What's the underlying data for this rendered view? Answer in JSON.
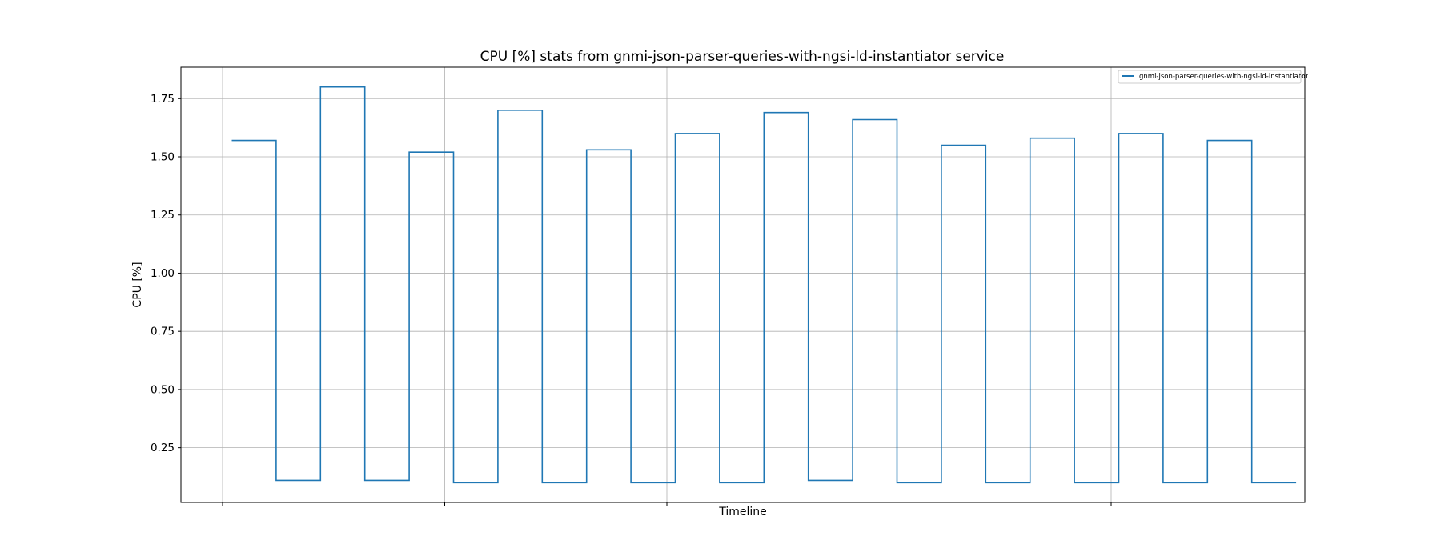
{
  "chart_data": {
    "type": "line",
    "title": "CPU [%] stats from gnmi-json-parser-queries-with-ngsi-ld-instantiator service",
    "xlabel": "Timeline",
    "ylabel": "CPU [%]",
    "x_tick_labels_visible": false,
    "line_style": "steps-post",
    "grid": true,
    "legend_position": "top-right",
    "ylim": [
      0.015,
      1.885
    ],
    "yticks": [
      0.25,
      0.5,
      0.75,
      1.0,
      1.25,
      1.5,
      1.75
    ],
    "ytick_labels": [
      "0.25",
      "0.50",
      "0.75",
      "1.00",
      "1.25",
      "1.50",
      "1.75"
    ],
    "series": [
      {
        "name": "gnmi-json-parser-queries-with-ngsi-ld-instantiator",
        "color": "#1f77b4",
        "x": [
          0,
          1,
          2,
          3,
          4,
          5,
          6,
          7,
          8,
          9,
          10,
          11,
          12,
          13,
          14,
          15,
          16,
          17,
          18,
          19,
          20,
          21,
          22,
          23
        ],
        "values": [
          1.57,
          0.11,
          1.8,
          0.11,
          1.52,
          0.1,
          1.7,
          0.1,
          1.53,
          0.1,
          1.6,
          0.1,
          1.69,
          0.11,
          1.66,
          0.1,
          1.55,
          0.1,
          1.58,
          0.1,
          1.6,
          0.1,
          1.57,
          0.1
        ]
      }
    ]
  }
}
